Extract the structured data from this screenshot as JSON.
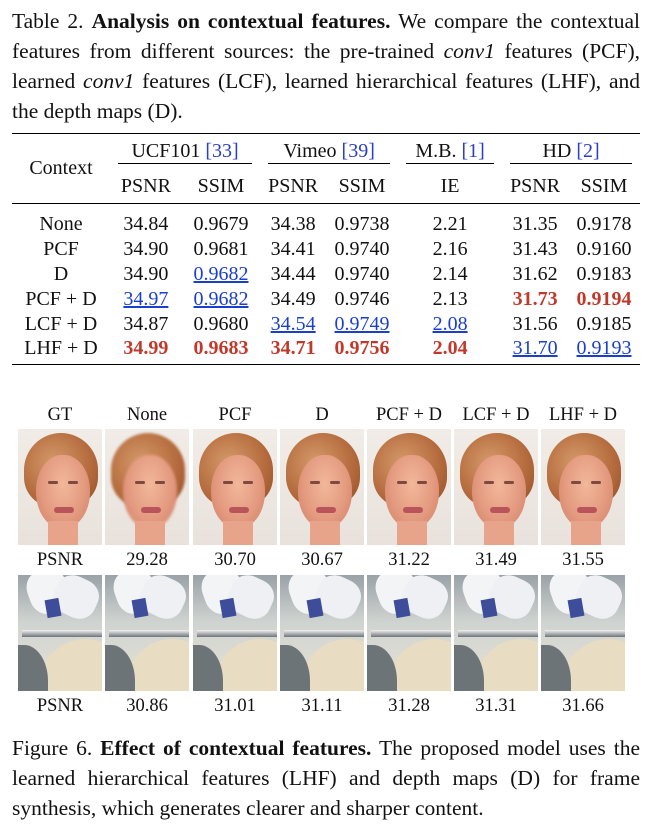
{
  "table_caption": {
    "label": "Table 2.",
    "bold": "Analysis on contextual features.",
    "part1": " We compare the contextual features from different sources: the pre-trained ",
    "italic1": "conv1",
    "part2": " features (PCF), learned ",
    "italic2": "conv1",
    "part3": " features (LCF), learned hierarchical features (LHF), and the depth maps (D)."
  },
  "table": {
    "context_header": "Context",
    "groups": [
      {
        "name": "UCF101",
        "ref": "[33]"
      },
      {
        "name": "Vimeo",
        "ref": "[39]"
      },
      {
        "name": "M.B.",
        "ref": "[1]"
      },
      {
        "name": "HD",
        "ref": "[2]"
      }
    ],
    "metrics": [
      "PSNR",
      "SSIM",
      "PSNR",
      "SSIM",
      "IE",
      "PSNR",
      "SSIM"
    ],
    "rows": [
      {
        "context": "None",
        "values": [
          "34.84",
          "0.9679",
          "34.38",
          "0.9738",
          "2.21",
          "31.35",
          "0.9178"
        ],
        "styles": [
          "",
          "",
          "",
          "",
          "",
          "",
          ""
        ]
      },
      {
        "context": "PCF",
        "values": [
          "34.90",
          "0.9681",
          "34.41",
          "0.9740",
          "2.16",
          "31.43",
          "0.9160"
        ],
        "styles": [
          "",
          "",
          "",
          "",
          "",
          "",
          ""
        ]
      },
      {
        "context": "D",
        "values": [
          "34.90",
          "0.9682",
          "34.44",
          "0.9740",
          "2.14",
          "31.62",
          "0.9183"
        ],
        "styles": [
          "",
          "second",
          "",
          "",
          "",
          "",
          ""
        ]
      },
      {
        "context": "PCF + D",
        "values": [
          "34.97",
          "0.9682",
          "34.49",
          "0.9746",
          "2.13",
          "31.73",
          "0.9194"
        ],
        "styles": [
          "second",
          "second",
          "",
          "",
          "",
          "best",
          "best"
        ]
      },
      {
        "context": "LCF + D",
        "values": [
          "34.87",
          "0.9680",
          "34.54",
          "0.9749",
          "2.08",
          "31.56",
          "0.9185"
        ],
        "styles": [
          "",
          "",
          "second",
          "second",
          "second",
          "",
          ""
        ]
      },
      {
        "context": "LHF + D",
        "values": [
          "34.99",
          "0.9683",
          "34.71",
          "0.9756",
          "2.04",
          "31.70",
          "0.9193"
        ],
        "styles": [
          "best",
          "best",
          "best",
          "best",
          "best",
          "second",
          "second"
        ]
      }
    ]
  },
  "figure": {
    "column_labels": [
      "GT",
      "None",
      "PCF",
      "D",
      "PCF + D",
      "LCF + D",
      "LHF + D"
    ],
    "row1_metric": "PSNR",
    "row1_values": [
      "29.28",
      "30.70",
      "30.67",
      "31.22",
      "31.49",
      "31.55"
    ],
    "row2_metric": "PSNR",
    "row2_values": [
      "30.86",
      "31.01",
      "31.11",
      "31.28",
      "31.31",
      "31.66"
    ]
  },
  "figure_caption": {
    "label": "Figure 6.",
    "bold": "Effect of contextual features.",
    "text": " The proposed model uses the learned hierarchical features (LHF) and depth maps (D) for frame synthesis, which generates clearer and sharper content."
  }
}
